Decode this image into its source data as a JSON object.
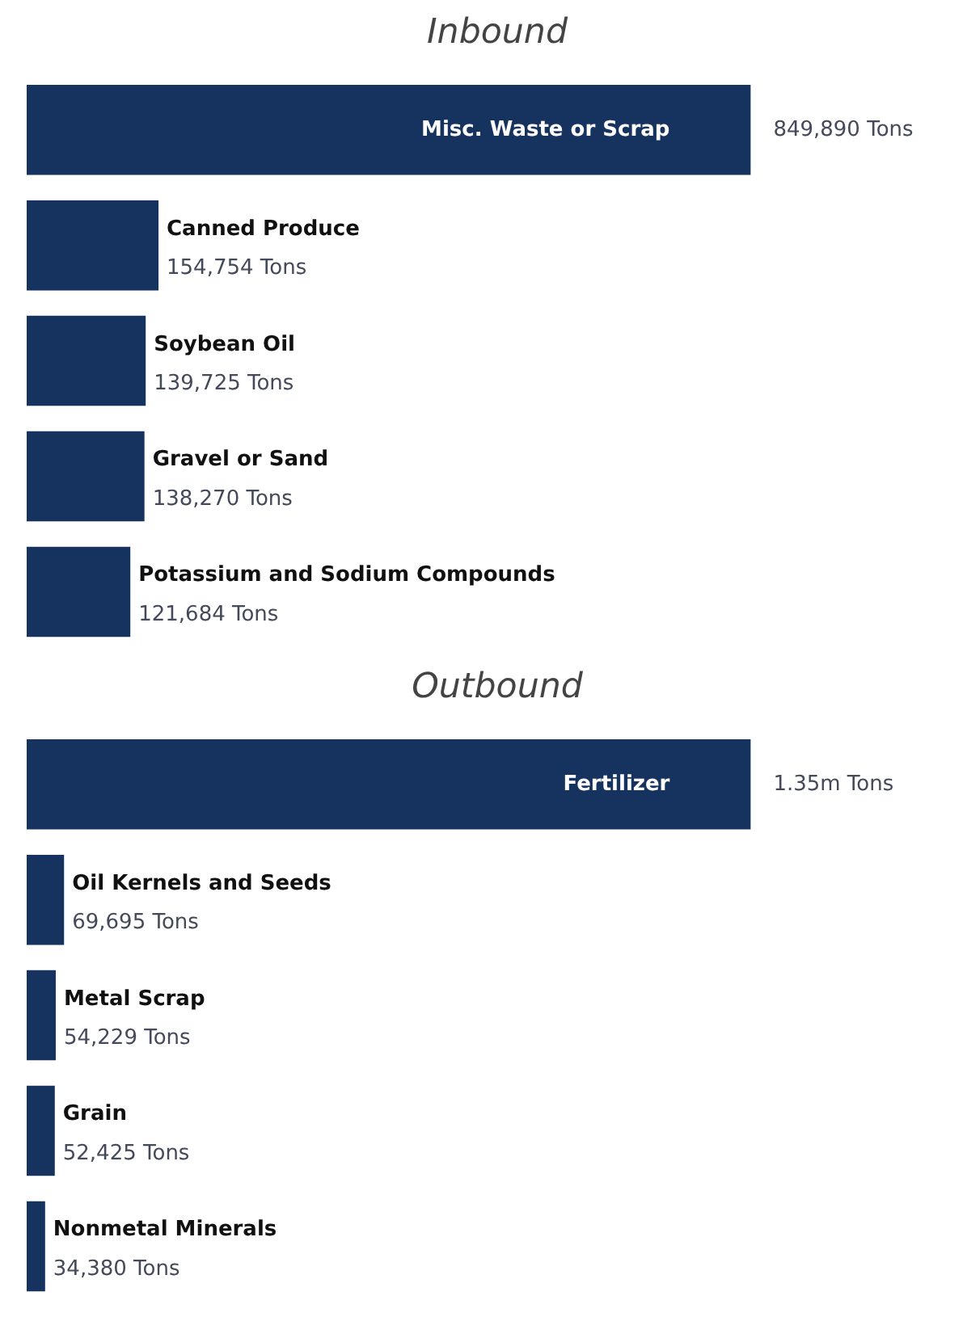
{
  "chart_data": [
    {
      "type": "bar",
      "title": "Inbound",
      "orientation": "horizontal",
      "color": "#16335f",
      "categories": [
        "Misc. Waste or Scrap",
        "Canned Produce",
        "Soybean Oil",
        "Gravel or Sand",
        "Potassium and Sodium Compounds"
      ],
      "values": [
        849890,
        154754,
        139725,
        138270,
        121684
      ],
      "value_labels": [
        "849,890 Tons",
        "154,754 Tons",
        "139,725 Tons",
        "138,270 Tons",
        "121,684 Tons"
      ]
    },
    {
      "type": "bar",
      "title": "Outbound",
      "orientation": "horizontal",
      "color": "#16335f",
      "categories": [
        "Fertilizer",
        "Oil Kernels and Seeds",
        "Metal Scrap",
        "Grain",
        "Nonmetal Minerals"
      ],
      "values": [
        1350000,
        69695,
        54229,
        52425,
        34380
      ],
      "value_labels": [
        "1.35m Tons",
        "69,695 Tons",
        "54,229 Tons",
        "52,425 Tons",
        "34,380 Tons"
      ]
    }
  ]
}
